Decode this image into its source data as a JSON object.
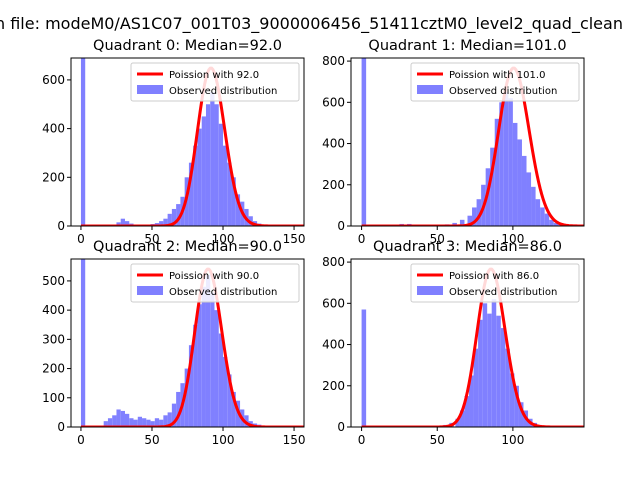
{
  "figure": {
    "suptitle": "n file: modeM0/AS1C07_001T03_9000006456_51411cztM0_level2_quad_clean"
  },
  "colors": {
    "hist": "#8080ff",
    "curve": "#ff0000",
    "axes": "#000000"
  },
  "chart_data": [
    {
      "type": "bar",
      "title": "Quadrant 0: Median=92.0",
      "median": 92.0,
      "xlim": [
        -7,
        157
      ],
      "ylim": [
        0,
        690
      ],
      "xticks": [
        0,
        50,
        100,
        150
      ],
      "yticks": [
        0,
        200,
        400,
        600
      ],
      "legend": {
        "position": "upper-right",
        "entries": [
          "Poission with 92.0",
          "Observed distribution"
        ]
      },
      "series": [
        {
          "name": "Observed distribution",
          "kind": "histogram"
        },
        {
          "name": "Poission with 92.0",
          "kind": "line"
        }
      ],
      "bins": {
        "x": [
          0,
          25,
          28,
          31,
          34,
          46,
          49,
          52,
          55,
          58,
          61,
          64,
          67,
          70,
          73,
          76,
          79,
          82,
          85,
          88,
          91,
          94,
          97,
          100,
          103,
          106,
          109,
          112,
          115,
          118,
          121,
          124,
          127,
          130
        ],
        "y": [
          690,
          15,
          30,
          20,
          10,
          5,
          8,
          12,
          20,
          30,
          50,
          70,
          90,
          120,
          200,
          260,
          330,
          400,
          450,
          500,
          550,
          500,
          420,
          330,
          260,
          200,
          130,
          100,
          70,
          40,
          20,
          10,
          5,
          3
        ]
      }
    },
    {
      "type": "bar",
      "title": "Quadrant 1: Median=101.0",
      "median": 101.0,
      "xlim": [
        -7,
        147
      ],
      "ylim": [
        0,
        815
      ],
      "xticks": [
        0,
        50,
        100
      ],
      "yticks": [
        0,
        200,
        400,
        600,
        800
      ],
      "legend": {
        "position": "upper-right",
        "entries": [
          "Poission with 101.0",
          "Observed distribution"
        ]
      },
      "series": [
        {
          "name": "Observed distribution",
          "kind": "histogram"
        },
        {
          "name": "Poission with 101.0",
          "kind": "line"
        }
      ],
      "bins": {
        "x": [
          0,
          25,
          30,
          35,
          50,
          55,
          60,
          65,
          70,
          73,
          76,
          79,
          82,
          85,
          88,
          91,
          94,
          97,
          100,
          103,
          106,
          109,
          112,
          115,
          118,
          121,
          124,
          127,
          130,
          133,
          136,
          139
        ],
        "y": [
          815,
          10,
          10,
          5,
          5,
          8,
          15,
          30,
          50,
          90,
          130,
          200,
          280,
          380,
          520,
          600,
          650,
          620,
          500,
          420,
          340,
          260,
          190,
          130,
          90,
          60,
          30,
          15,
          10,
          5,
          3,
          2
        ]
      }
    },
    {
      "type": "bar",
      "title": "Quadrant 2: Median=90.0",
      "median": 90.0,
      "xlim": [
        -7,
        157
      ],
      "ylim": [
        0,
        575
      ],
      "xticks": [
        0,
        50,
        100,
        150
      ],
      "yticks": [
        0,
        100,
        200,
        300,
        400,
        500
      ],
      "legend": {
        "position": "upper-right",
        "entries": [
          "Poission with 90.0",
          "Observed distribution"
        ]
      },
      "series": [
        {
          "name": "Observed distribution",
          "kind": "histogram"
        },
        {
          "name": "Poission with 90.0",
          "kind": "line"
        }
      ],
      "bins": {
        "x": [
          0,
          16,
          19,
          22,
          25,
          28,
          31,
          34,
          37,
          40,
          43,
          46,
          49,
          52,
          55,
          58,
          61,
          64,
          67,
          70,
          73,
          76,
          79,
          82,
          85,
          88,
          91,
          94,
          97,
          100,
          103,
          106,
          109,
          112,
          115,
          118,
          121,
          124,
          127,
          130
        ],
        "y": [
          575,
          20,
          30,
          40,
          60,
          55,
          45,
          30,
          25,
          35,
          30,
          25,
          20,
          30,
          25,
          40,
          50,
          80,
          120,
          150,
          200,
          280,
          350,
          420,
          480,
          520,
          460,
          400,
          320,
          240,
          180,
          120,
          90,
          60,
          40,
          20,
          12,
          8,
          5,
          3
        ]
      }
    },
    {
      "type": "bar",
      "title": "Quadrant 3: Median=86.0",
      "median": 86.0,
      "xlim": [
        -7,
        147
      ],
      "ylim": [
        0,
        815
      ],
      "xticks": [
        0,
        50,
        100
      ],
      "yticks": [
        0,
        200,
        400,
        600,
        800
      ],
      "legend": {
        "position": "upper-right",
        "entries": [
          "Poission with 86.0",
          "Observed distribution"
        ]
      },
      "series": [
        {
          "name": "Observed distribution",
          "kind": "histogram"
        },
        {
          "name": "Poission with 86.0",
          "kind": "line"
        }
      ],
      "bins": {
        "x": [
          0,
          50,
          54,
          58,
          62,
          65,
          68,
          71,
          74,
          77,
          80,
          83,
          86,
          89,
          92,
          95,
          98,
          101,
          104,
          107,
          110,
          113,
          116,
          119,
          122,
          125
        ],
        "y": [
          570,
          5,
          10,
          20,
          40,
          80,
          150,
          250,
          380,
          520,
          600,
          550,
          620,
          540,
          480,
          380,
          260,
          200,
          120,
          80,
          40,
          20,
          10,
          6,
          3,
          2
        ]
      }
    }
  ]
}
